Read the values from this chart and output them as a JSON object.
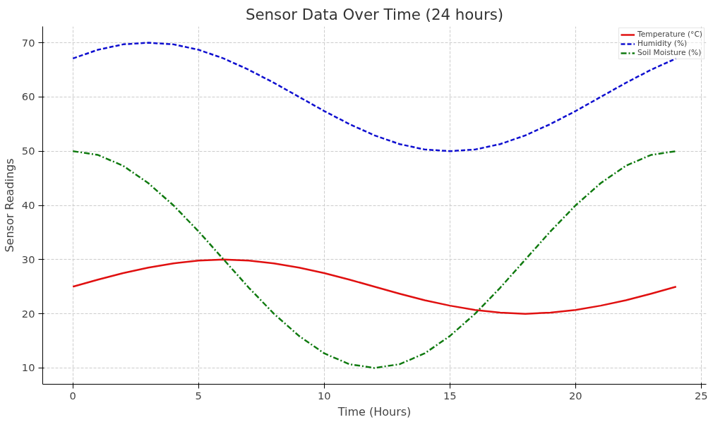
{
  "chart_data": {
    "type": "line",
    "title": "Sensor Data Over Time (24 hours)",
    "xlabel": "Time (Hours)",
    "ylabel": "Sensor Readings",
    "x": [
      0,
      1,
      2,
      3,
      4,
      5,
      6,
      7,
      8,
      9,
      10,
      11,
      12,
      13,
      14,
      15,
      16,
      17,
      18,
      19,
      20,
      21,
      22,
      23,
      24
    ],
    "series": [
      {
        "name": "Temperature (°C)",
        "color": "#e01010",
        "line_style": "solid",
        "values": [
          25,
          26.3,
          27.5,
          28.5,
          29.3,
          29.8,
          30,
          29.8,
          29.3,
          28.5,
          27.5,
          26.3,
          25,
          23.7,
          22.5,
          21.5,
          20.7,
          20.2,
          20,
          20.2,
          20.7,
          21.5,
          22.5,
          23.7,
          25
        ]
      },
      {
        "name": "Humidity (%)",
        "color": "#1010d0",
        "line_style": "dashed",
        "values": [
          67.1,
          68.7,
          69.7,
          70,
          69.7,
          68.7,
          67.1,
          65,
          62.6,
          60,
          57.4,
          55,
          52.9,
          51.3,
          50.3,
          50,
          50.3,
          51.3,
          52.9,
          55,
          57.4,
          60,
          62.6,
          65,
          67.1
        ]
      },
      {
        "name": "Soil Moisture (%)",
        "color": "#107a10",
        "line_style": "dashdot",
        "values": [
          50,
          49.3,
          47.3,
          44.1,
          40,
          35.2,
          30,
          24.8,
          20,
          15.9,
          12.7,
          10.7,
          10,
          10.7,
          12.7,
          15.9,
          20,
          24.8,
          30,
          35.2,
          40,
          44.1,
          47.3,
          49.3,
          50
        ]
      }
    ],
    "xlim": [
      -1.2,
      25.2
    ],
    "ylim": [
      7,
      73
    ],
    "xticks": [
      0,
      5,
      10,
      15,
      20,
      25
    ],
    "yticks": [
      10,
      20,
      30,
      40,
      50,
      60,
      70
    ],
    "grid": true,
    "legend": "top right"
  }
}
